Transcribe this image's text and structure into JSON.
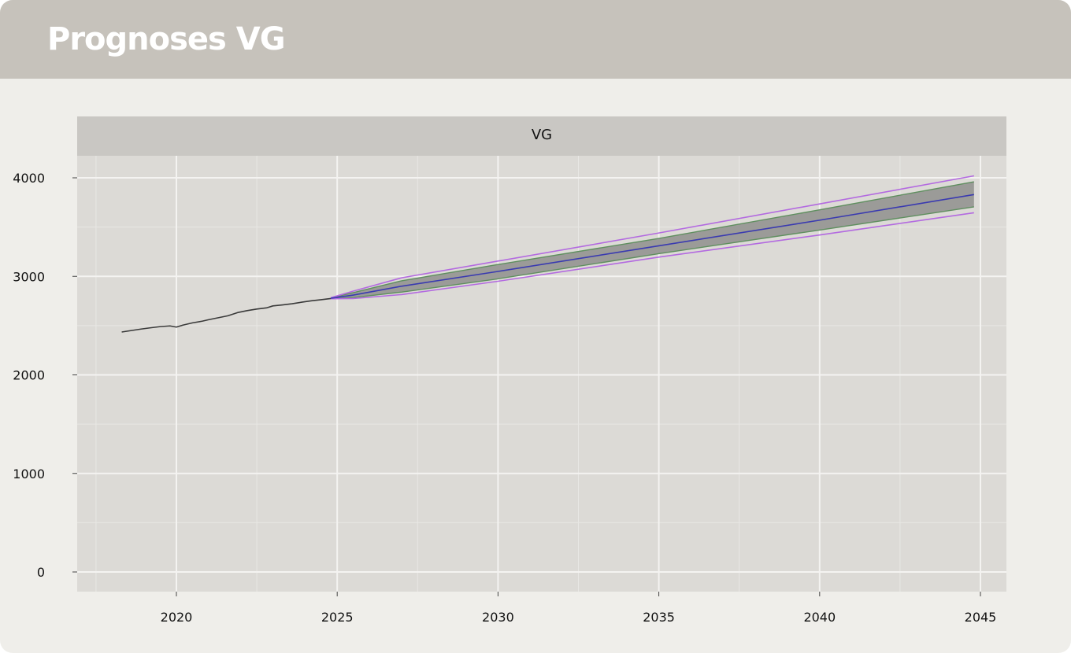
{
  "header": {
    "title": "Prognoses VG"
  },
  "chart_data": {
    "type": "line",
    "panel_label": "VG",
    "title": "",
    "xlabel": "",
    "ylabel": "",
    "xlim": [
      2016.5,
      2045.8
    ],
    "ylim": [
      -200,
      4200
    ],
    "x_ticks": [
      2020,
      2025,
      2030,
      2035,
      2040,
      2045
    ],
    "x_tick_labels": [
      "2020",
      "2025",
      "2030",
      "2035",
      "2040",
      "2045"
    ],
    "y_ticks": [
      0,
      1000,
      2000,
      3000,
      4000
    ],
    "y_tick_labels": [
      "0",
      "1000",
      "2000",
      "3000",
      "4000"
    ],
    "grid": true,
    "legend": "none",
    "colors": {
      "history": "#3a3a3a",
      "forecast_mean": "#3a3ab0",
      "band_80_fill": "#9b9b98",
      "band_80_line": "#5f8f5f",
      "band_95_line": "#b36ae0",
      "panel_bg": "#dcdad6",
      "strip_bg": "#c9c7c3",
      "grid_major": "#f4f3f1",
      "grid_minor": "#e8e7e4"
    },
    "history": {
      "x": [
        2018.3,
        2018.6,
        2018.9,
        2019.2,
        2019.5,
        2019.8,
        2020.0,
        2020.2,
        2020.5,
        2020.8,
        2021.0,
        2021.3,
        2021.6,
        2021.9,
        2022.2,
        2022.5,
        2022.8,
        2023.0,
        2023.3,
        2023.6,
        2023.9,
        2024.2,
        2024.5,
        2024.8
      ],
      "y": [
        2435,
        2450,
        2465,
        2478,
        2490,
        2497,
        2485,
        2505,
        2528,
        2545,
        2560,
        2580,
        2600,
        2632,
        2652,
        2668,
        2680,
        2700,
        2710,
        2722,
        2738,
        2752,
        2763,
        2775
      ]
    },
    "forecast": {
      "x": [
        2024.8,
        2025.5,
        2027,
        2030,
        2035,
        2040,
        2044.8
      ],
      "mean": [
        2778,
        2810,
        2900,
        3050,
        3310,
        3570,
        3830
      ],
      "lo80": [
        2775,
        2785,
        2840,
        2975,
        3230,
        3470,
        3705
      ],
      "hi80": [
        2780,
        2835,
        2955,
        3120,
        3385,
        3675,
        3960
      ],
      "lo95": [
        2773,
        2775,
        2815,
        2950,
        3195,
        3420,
        3645
      ],
      "hi95": [
        2783,
        2850,
        2985,
        3155,
        3440,
        3735,
        4020
      ]
    }
  }
}
